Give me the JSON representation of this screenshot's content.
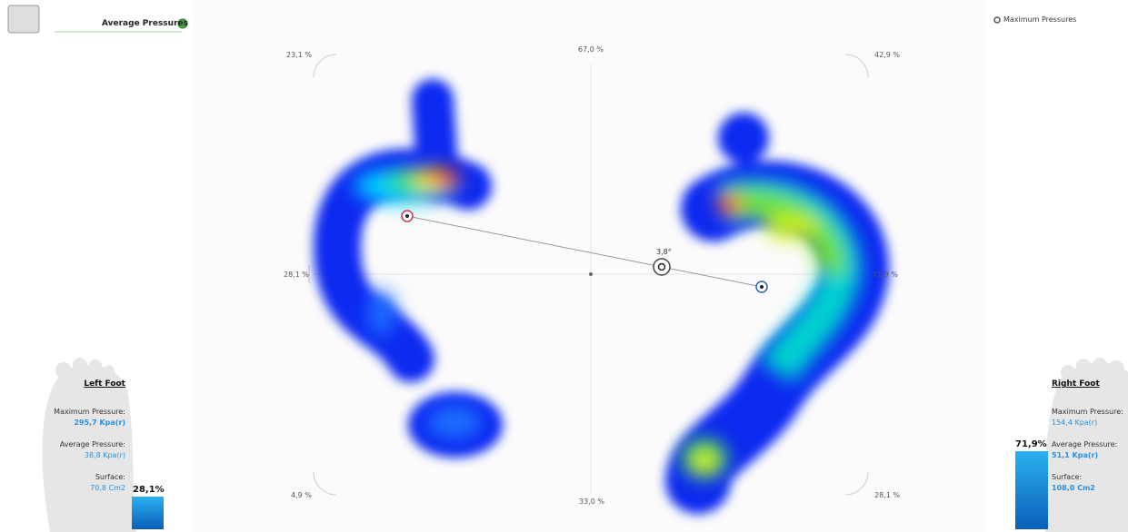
{
  "header": {
    "average_label": "Average Pressures",
    "maximum_label": "Maximum Pressures"
  },
  "distribution": {
    "top_left": "23,1 %",
    "top_center": "67,0 %",
    "top_right": "42,9 %",
    "mid_left": "28,1 %",
    "mid_right": "71,9 %",
    "bottom_left": "4,9 %",
    "bottom_center": "33,0 %",
    "bottom_right": "28,1 %",
    "angle": "3,8°"
  },
  "left_foot": {
    "title": "Left Foot",
    "max_label": "Maximum Pressure:",
    "max_value": "295,7 Kpa(r)",
    "avg_label": "Average Pressure:",
    "avg_value": "38,8 Kpa(r)",
    "surface_label": "Surface:",
    "surface_value": "70,8 Cm2",
    "share": "28,1%"
  },
  "right_foot": {
    "title": "Right Foot",
    "max_label": "Maximum Pressure:",
    "max_value": "154,4 Kpa(r)",
    "avg_label": "Average Pressure:",
    "avg_value": "51,1 Kpa(r)",
    "surface_label": "Surface:",
    "surface_value": "108,0 Cm2",
    "share": "71,9%"
  }
}
